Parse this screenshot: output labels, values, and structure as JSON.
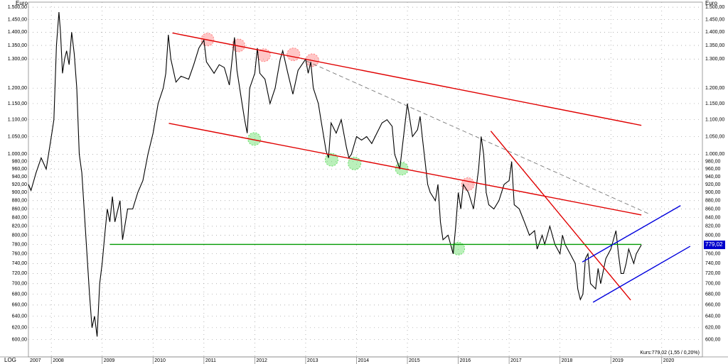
{
  "chart_data": {
    "type": "line",
    "log_scale": true,
    "grid": true,
    "y_label": "Euro",
    "scale_label": "LOG",
    "annotation": "Kurs:779,02 (1,55 / 0,20%)",
    "current_price": {
      "value": 779.02,
      "label": "779,02",
      "color": "#0000cc"
    },
    "xlim": [
      2007.55,
      2020.8
    ],
    "ylim": [
      572,
      1521
    ],
    "xticks": [
      2007,
      2008,
      2009,
      2010,
      2011,
      2012,
      2013,
      2014,
      2015,
      2016,
      2017,
      2018,
      2019,
      2020
    ],
    "yticks": [
      {
        "value": 600,
        "label": "600,00"
      },
      {
        "value": 620,
        "label": "620,00"
      },
      {
        "value": 640,
        "label": "640,00"
      },
      {
        "value": 660,
        "label": "660,00"
      },
      {
        "value": 680,
        "label": "680,00"
      },
      {
        "value": 700,
        "label": "700,00"
      },
      {
        "value": 720,
        "label": "720,00"
      },
      {
        "value": 740,
        "label": "740,00"
      },
      {
        "value": 760,
        "label": "760,00"
      },
      {
        "value": 780,
        "label": "780,00"
      },
      {
        "value": 800,
        "label": "800,00"
      },
      {
        "value": 820,
        "label": "820,00"
      },
      {
        "value": 840,
        "label": "840,00"
      },
      {
        "value": 860,
        "label": "860,00"
      },
      {
        "value": 880,
        "label": "880,00"
      },
      {
        "value": 900,
        "label": "900,00"
      },
      {
        "value": 920,
        "label": "920,00"
      },
      {
        "value": 940,
        "label": "940,00"
      },
      {
        "value": 960,
        "label": "960,00"
      },
      {
        "value": 980,
        "label": "980,00"
      },
      {
        "value": 1000,
        "label": "1.000,00"
      },
      {
        "value": 1050,
        "label": "1.050,00"
      },
      {
        "value": 1100,
        "label": "1.100,00"
      },
      {
        "value": 1150,
        "label": "1.150,00"
      },
      {
        "value": 1200,
        "label": "1.200,00"
      },
      {
        "value": 1300,
        "label": "1.300,00"
      },
      {
        "value": 1350,
        "label": "1.350,00"
      },
      {
        "value": 1400,
        "label": "1.400,00"
      },
      {
        "value": 1450,
        "label": "1.450,00"
      },
      {
        "value": 1500,
        "label": "1.500,00"
      }
    ],
    "x": [
      2007.55,
      2007.6,
      2007.7,
      2007.8,
      2007.9,
      2008.0,
      2008.05,
      2008.1,
      2008.15,
      2008.18,
      2008.22,
      2008.26,
      2008.3,
      2008.35,
      2008.4,
      2008.45,
      2008.5,
      2008.55,
      2008.6,
      2008.65,
      2008.7,
      2008.75,
      2008.8,
      2008.85,
      2008.9,
      2008.95,
      2009.0,
      2009.05,
      2009.1,
      2009.15,
      2009.2,
      2009.25,
      2009.35,
      2009.4,
      2009.5,
      2009.6,
      2009.7,
      2009.8,
      2009.9,
      2010.0,
      2010.1,
      2010.2,
      2010.25,
      2010.3,
      2010.35,
      2010.45,
      2010.55,
      2010.7,
      2010.8,
      2010.9,
      2011.0,
      2011.05,
      2011.2,
      2011.3,
      2011.4,
      2011.5,
      2011.6,
      2011.65,
      2011.75,
      2011.8,
      2011.85,
      2011.9,
      2012.0,
      2012.05,
      2012.1,
      2012.2,
      2012.3,
      2012.4,
      2012.5,
      2012.55,
      2012.65,
      2012.75,
      2012.85,
      2013.0,
      2013.05,
      2013.1,
      2013.15,
      2013.25,
      2013.3,
      2013.4,
      2013.45,
      2013.5,
      2013.6,
      2013.7,
      2013.8,
      2013.85,
      2013.9,
      2014.0,
      2014.1,
      2014.2,
      2014.3,
      2014.4,
      2014.5,
      2014.6,
      2014.7,
      2014.75,
      2014.8,
      2014.85,
      2014.9,
      2015.0,
      2015.05,
      2015.1,
      2015.2,
      2015.25,
      2015.3,
      2015.4,
      2015.45,
      2015.55,
      2015.6,
      2015.65,
      2015.7,
      2015.8,
      2015.85,
      2015.9,
      2015.95,
      2016.0,
      2016.05,
      2016.1,
      2016.2,
      2016.3,
      2016.4,
      2016.45,
      2016.5,
      2016.55,
      2016.6,
      2016.7,
      2016.8,
      2016.9,
      2017.0,
      2017.05,
      2017.1,
      2017.2,
      2017.3,
      2017.4,
      2017.5,
      2017.55,
      2017.65,
      2017.7,
      2017.8,
      2017.9,
      2018.0,
      2018.05,
      2018.1,
      2018.2,
      2018.3,
      2018.35,
      2018.4,
      2018.45,
      2018.5,
      2018.55,
      2018.6,
      2018.7,
      2018.75,
      2018.8,
      2018.9,
      2019.0,
      2019.05,
      2019.1,
      2019.15,
      2019.2,
      2019.25,
      2019.3,
      2019.35,
      2019.45,
      2019.5,
      2019.6
    ],
    "series": [
      {
        "color": "#000000",
        "values": [
          920,
          905,
          950,
          990,
          960,
          1050,
          1100,
          1350,
          1480,
          1400,
          1250,
          1300,
          1330,
          1280,
          1400,
          1320,
          1200,
          1000,
          950,
          850,
          760,
          680,
          620,
          640,
          605,
          700,
          740,
          800,
          860,
          830,
          890,
          830,
          880,
          790,
          860,
          860,
          900,
          930,
          1000,
          1060,
          1150,
          1200,
          1250,
          1390,
          1300,
          1220,
          1240,
          1230,
          1280,
          1340,
          1370,
          1290,
          1250,
          1280,
          1270,
          1210,
          1380,
          1260,
          1150,
          1100,
          1060,
          1200,
          1250,
          1340,
          1250,
          1230,
          1150,
          1200,
          1300,
          1330,
          1250,
          1180,
          1260,
          1300,
          1250,
          1290,
          1200,
          1150,
          1100,
          1010,
          990,
          1090,
          1060,
          1100,
          1020,
          990,
          1000,
          1050,
          1040,
          1050,
          1030,
          1060,
          1090,
          1100,
          1080,
          1000,
          980,
          960,
          1020,
          1150,
          1100,
          1050,
          1070,
          1110,
          1040,
          920,
          900,
          880,
          920,
          830,
          790,
          800,
          780,
          760,
          820,
          900,
          860,
          920,
          900,
          860,
          960,
          1050,
          1000,
          900,
          870,
          860,
          880,
          920,
          930,
          980,
          870,
          860,
          830,
          800,
          810,
          770,
          800,
          780,
          820,
          780,
          760,
          800,
          780,
          760,
          740,
          690,
          670,
          680,
          750,
          760,
          700,
          690,
          730,
          700,
          750,
          770,
          790,
          810,
          760,
          720,
          720,
          740,
          770,
          740,
          760,
          779.02
        ]
      }
    ],
    "trendlines": [
      {
        "color": "#e00000",
        "style": "solid",
        "x": [
          2010.38,
          2019.6
        ],
        "y": [
          1397,
          1083
        ]
      },
      {
        "color": "#e00000",
        "style": "solid",
        "x": [
          2010.31,
          2019.6
        ],
        "y": [
          1089,
          846
        ]
      },
      {
        "color": "#777777",
        "style": "dashed",
        "x": [
          2013.02,
          2019.74
        ],
        "y": [
          1293,
          849
        ]
      },
      {
        "color": "#e00000",
        "style": "solid",
        "x": [
          2016.64,
          2019.39
        ],
        "y": [
          1066,
          669
        ]
      },
      {
        "color": "#009900",
        "style": "solid",
        "x": [
          2009.15,
          2019.6
        ],
        "y": [
          780,
          780
        ]
      },
      {
        "color": "#0000dd",
        "style": "solid",
        "x": [
          2018.44,
          2020.37
        ],
        "y": [
          743,
          868
        ]
      },
      {
        "color": "#0000dd",
        "style": "solid",
        "x": [
          2018.65,
          2020.56
        ],
        "y": [
          665,
          776
        ]
      }
    ],
    "highlights": [
      {
        "color": "#ff8080",
        "x": 2011.07,
        "y": 1372
      },
      {
        "color": "#ff8080",
        "x": 2011.68,
        "y": 1350
      },
      {
        "color": "#ff8080",
        "x": 2012.18,
        "y": 1314
      },
      {
        "color": "#ff8080",
        "x": 2012.76,
        "y": 1317
      },
      {
        "color": "#ff8080",
        "x": 2013.13,
        "y": 1296
      },
      {
        "color": "#ff8080",
        "x": 2016.19,
        "y": 921
      },
      {
        "color": "#66dd66",
        "x": 2011.99,
        "y": 1043
      },
      {
        "color": "#66dd66",
        "x": 2013.51,
        "y": 985
      },
      {
        "color": "#66dd66",
        "x": 2013.96,
        "y": 975
      },
      {
        "color": "#66dd66",
        "x": 2014.89,
        "y": 961
      },
      {
        "color": "#66dd66",
        "x": 2016.0,
        "y": 771
      }
    ]
  }
}
